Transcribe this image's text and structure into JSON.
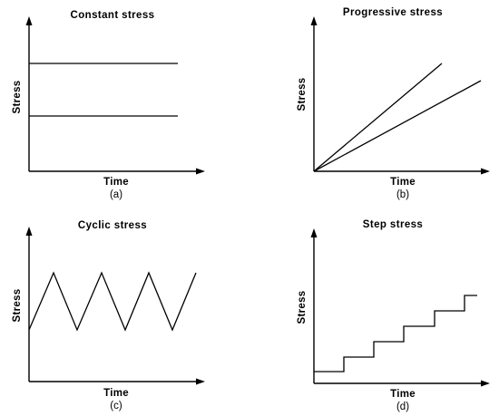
{
  "panels": [
    {
      "id": "a",
      "title": "Constant stress",
      "ylabel": "Stress",
      "xlabel": "Time",
      "caption": "(a)",
      "profile": "constant",
      "description_series": [
        {
          "levels": "high constant"
        },
        {
          "levels": "low constant"
        }
      ]
    },
    {
      "id": "b",
      "title": "Progressive stress",
      "ylabel": "Stress",
      "xlabel": "Time",
      "caption": "(b)",
      "profile": "progressive"
    },
    {
      "id": "c",
      "title": "Cyclic stress",
      "ylabel": "Stress",
      "xlabel": "Time",
      "caption": "(c)",
      "profile": "cyclic"
    },
    {
      "id": "d",
      "title": "Step stress",
      "ylabel": "Stress",
      "xlabel": "Time",
      "caption": "(d)",
      "profile": "step",
      "steps": 6
    }
  ],
  "colors": {
    "line": "#000000",
    "background": "#ffffff"
  }
}
